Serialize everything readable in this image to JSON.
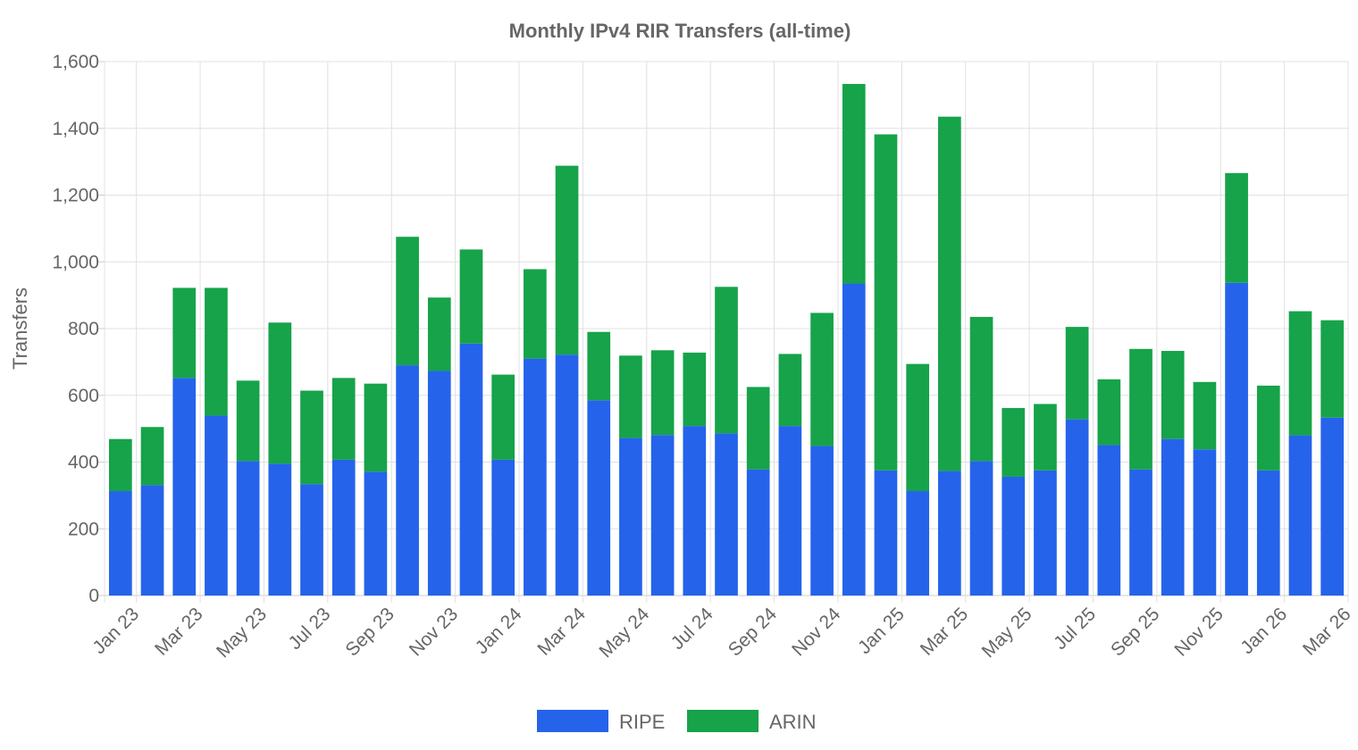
{
  "chart_data": {
    "type": "bar",
    "stacked": true,
    "title": "Monthly IPv4 RIR Transfers (all-time)",
    "xlabel": "",
    "ylabel": "Transfers",
    "ylim": [
      0,
      1600
    ],
    "yticks": [
      "0",
      "200",
      "400",
      "600",
      "800",
      "1,000",
      "1,200",
      "1,400",
      "1,600"
    ],
    "grid": true,
    "legend_position": "bottom",
    "categories": [
      "Jan 23",
      "Feb 23",
      "Mar 23",
      "Apr 23",
      "May 23",
      "Jun 23",
      "Jul 23",
      "Aug 23",
      "Sep 23",
      "Oct 23",
      "Nov 23",
      "Dec 23",
      "Jan 24",
      "Feb 24",
      "Mar 24",
      "Apr 24",
      "May 24",
      "Jun 24",
      "Jul 24",
      "Aug 24",
      "Sep 24",
      "Oct 24",
      "Nov 24",
      "Dec 24",
      "Jan 25",
      "Feb 25",
      "Mar 25",
      "Apr 25",
      "May 25",
      "Jun 25",
      "Jul 25",
      "Aug 25",
      "Sep 25",
      "Oct 25",
      "Nov 25",
      "Dec 25",
      "Jan 26",
      "Feb 26",
      "Mar 26"
    ],
    "tick_labels": [
      "Jan 23",
      "Mar 23",
      "May 23",
      "Jul 23",
      "Sep 23",
      "Nov 23",
      "Jan 24",
      "Mar 24",
      "May 24",
      "Jul 24",
      "Sep 24",
      "Nov 24",
      "Jan 25",
      "Mar 25",
      "May 25",
      "Jul 25",
      "Sep 25",
      "Nov 25",
      "Jan 26",
      "Mar 26"
    ],
    "series": [
      {
        "name": "RIPE",
        "color": "#2563eb",
        "values": [
          313,
          331,
          652,
          539,
          403,
          395,
          334,
          407,
          371,
          690,
          673,
          755,
          407,
          710,
          722,
          585,
          472,
          481,
          508,
          486,
          378,
          508,
          448,
          935,
          375,
          313,
          373,
          403,
          356,
          375,
          528,
          451,
          378,
          469,
          438,
          937,
          375,
          480,
          533
        ]
      },
      {
        "name": "ARIN",
        "color": "#16a34a",
        "values": [
          156,
          174,
          270,
          383,
          241,
          423,
          280,
          245,
          264,
          385,
          220,
          282,
          255,
          268,
          566,
          205,
          247,
          254,
          220,
          439,
          247,
          216,
          399,
          598,
          1007,
          381,
          1062,
          432,
          206,
          199,
          277,
          197,
          361,
          264,
          202,
          329,
          254,
          372,
          292
        ]
      }
    ]
  }
}
